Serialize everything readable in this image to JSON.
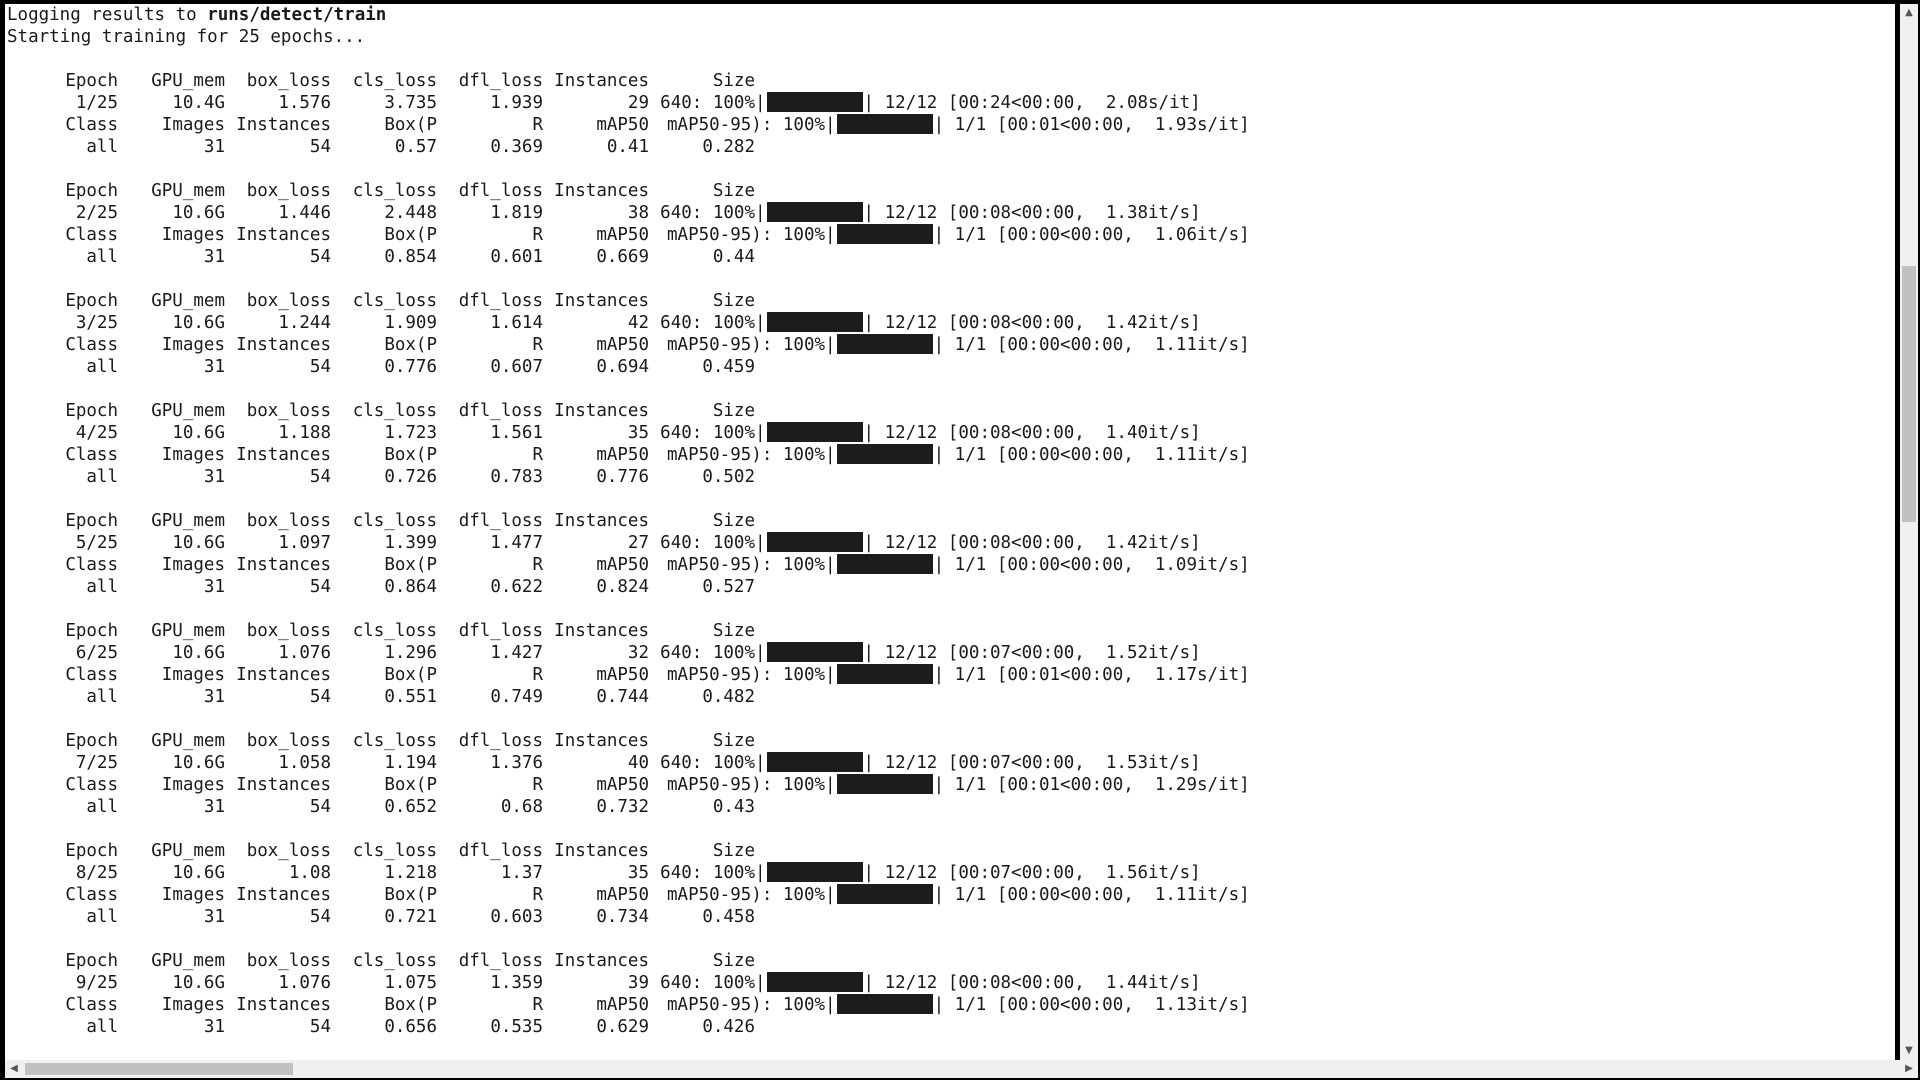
{
  "header": {
    "log_prefix": "Logging results to ",
    "log_path": "runs/detect/train",
    "start_line": "Starting training for 25 epochs..."
  },
  "train_headers": [
    "Epoch",
    "GPU_mem",
    "box_loss",
    "cls_loss",
    "dfl_loss",
    "Instances",
    "Size"
  ],
  "val_headers": [
    "Class",
    "Images",
    "Instances",
    "Box(P",
    "R",
    "mAP50",
    "mAP50-95): 100%"
  ],
  "epochs": [
    {
      "train": [
        "1/25",
        "10.4G",
        "1.576",
        "3.735",
        "1.939",
        "29",
        "640: 100%"
      ],
      "train_progress": "12/12 [00:24<00:00,  2.08s/it]",
      "val_progress": "1/1 [00:01<00:00,  1.93s/it]",
      "val": [
        "all",
        "31",
        "54",
        "0.57",
        "0.369",
        "0.41",
        "0.282"
      ]
    },
    {
      "train": [
        "2/25",
        "10.6G",
        "1.446",
        "2.448",
        "1.819",
        "38",
        "640: 100%"
      ],
      "train_progress": "12/12 [00:08<00:00,  1.38it/s]",
      "val_progress": "1/1 [00:00<00:00,  1.06it/s]",
      "val": [
        "all",
        "31",
        "54",
        "0.854",
        "0.601",
        "0.669",
        "0.44"
      ]
    },
    {
      "train": [
        "3/25",
        "10.6G",
        "1.244",
        "1.909",
        "1.614",
        "42",
        "640: 100%"
      ],
      "train_progress": "12/12 [00:08<00:00,  1.42it/s]",
      "val_progress": "1/1 [00:00<00:00,  1.11it/s]",
      "val": [
        "all",
        "31",
        "54",
        "0.776",
        "0.607",
        "0.694",
        "0.459"
      ]
    },
    {
      "train": [
        "4/25",
        "10.6G",
        "1.188",
        "1.723",
        "1.561",
        "35",
        "640: 100%"
      ],
      "train_progress": "12/12 [00:08<00:00,  1.40it/s]",
      "val_progress": "1/1 [00:00<00:00,  1.11it/s]",
      "val": [
        "all",
        "31",
        "54",
        "0.726",
        "0.783",
        "0.776",
        "0.502"
      ]
    },
    {
      "train": [
        "5/25",
        "10.6G",
        "1.097",
        "1.399",
        "1.477",
        "27",
        "640: 100%"
      ],
      "train_progress": "12/12 [00:08<00:00,  1.42it/s]",
      "val_progress": "1/1 [00:00<00:00,  1.09it/s]",
      "val": [
        "all",
        "31",
        "54",
        "0.864",
        "0.622",
        "0.824",
        "0.527"
      ]
    },
    {
      "train": [
        "6/25",
        "10.6G",
        "1.076",
        "1.296",
        "1.427",
        "32",
        "640: 100%"
      ],
      "train_progress": "12/12 [00:07<00:00,  1.52it/s]",
      "val_progress": "1/1 [00:01<00:00,  1.17s/it]",
      "val": [
        "all",
        "31",
        "54",
        "0.551",
        "0.749",
        "0.744",
        "0.482"
      ]
    },
    {
      "train": [
        "7/25",
        "10.6G",
        "1.058",
        "1.194",
        "1.376",
        "40",
        "640: 100%"
      ],
      "train_progress": "12/12 [00:07<00:00,  1.53it/s]",
      "val_progress": "1/1 [00:01<00:00,  1.29s/it]",
      "val": [
        "all",
        "31",
        "54",
        "0.652",
        "0.68",
        "0.732",
        "0.43"
      ]
    },
    {
      "train": [
        "8/25",
        "10.6G",
        "1.08",
        "1.218",
        "1.37",
        "35",
        "640: 100%"
      ],
      "train_progress": "12/12 [00:07<00:00,  1.56it/s]",
      "val_progress": "1/1 [00:00<00:00,  1.11it/s]",
      "val": [
        "all",
        "31",
        "54",
        "0.721",
        "0.603",
        "0.734",
        "0.458"
      ]
    },
    {
      "train": [
        "9/25",
        "10.6G",
        "1.076",
        "1.075",
        "1.359",
        "39",
        "640: 100%"
      ],
      "train_progress": "12/12 [00:08<00:00,  1.44it/s]",
      "val_progress": "1/1 [00:00<00:00,  1.13it/s]",
      "val": [
        "all",
        "31",
        "54",
        "0.656",
        "0.535",
        "0.629",
        "0.426"
      ]
    }
  ],
  "scrollbars": {
    "up_arrow": "▲",
    "down_arrow": "▼",
    "left_arrow": "◀",
    "right_arrow": "▶",
    "vertical_icon": "scrollbar-vertical-icon",
    "horizontal_icon": "scrollbar-horizontal-icon"
  }
}
